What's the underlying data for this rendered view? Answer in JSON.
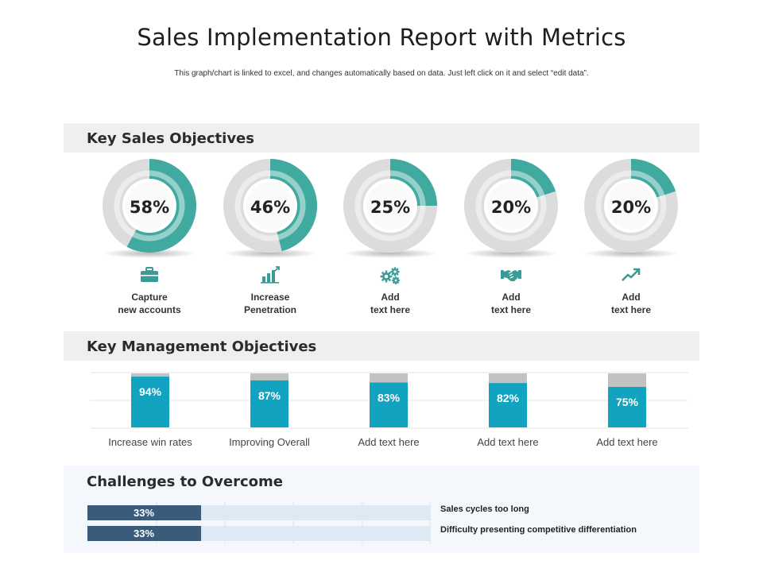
{
  "header": {
    "title": "Sales Implementation Report with Metrics",
    "subtitle": "This graph/chart is linked to excel, and changes automatically based on data. Just left click on it and select “edit data”."
  },
  "sections": {
    "sales": "Key Sales Objectives",
    "management": "Key Management Objectives",
    "challenges": "Challenges to Overcome"
  },
  "colors": {
    "teal": "#41aaa0",
    "bar_cyan": "#11a3bf",
    "grey_track": "#dcdcdc",
    "grey_rem": "#c2c2c2",
    "navy": "#3a5b7a",
    "icon": "#3b9b96"
  },
  "chart_data": [
    {
      "type": "pie",
      "title": "Key Sales Objectives",
      "categories": [
        "Capture\nnew accounts",
        "Increase\nPenetration",
        "Add\ntext here",
        "Add\ntext here",
        "Add\ntext here"
      ],
      "values": [
        58,
        46,
        25,
        20,
        20
      ],
      "labels": [
        "58%",
        "46%",
        "25%",
        "20%",
        "20%"
      ],
      "icons": [
        "briefcase-icon",
        "bar-chart-icon",
        "gears-icon",
        "handshake-icon",
        "trend-up-icon"
      ]
    },
    {
      "type": "bar",
      "title": "Key Management Objectives",
      "categories": [
        "Increase win rates",
        "Improving Overall",
        "Add text here",
        "Add text here",
        "Add text here"
      ],
      "values": [
        94,
        87,
        83,
        82,
        75
      ],
      "labels": [
        "94%",
        "87%",
        "83%",
        "82%",
        "75%"
      ],
      "ylim": [
        0,
        100
      ]
    },
    {
      "type": "bar",
      "title": "Challenges to Overcome",
      "categories": [
        "Sales cycles too long",
        "Difficulty presenting competitive differentiation"
      ],
      "values": [
        33,
        33
      ],
      "labels": [
        "33%",
        "33%"
      ],
      "xlim": [
        0,
        100
      ]
    }
  ]
}
